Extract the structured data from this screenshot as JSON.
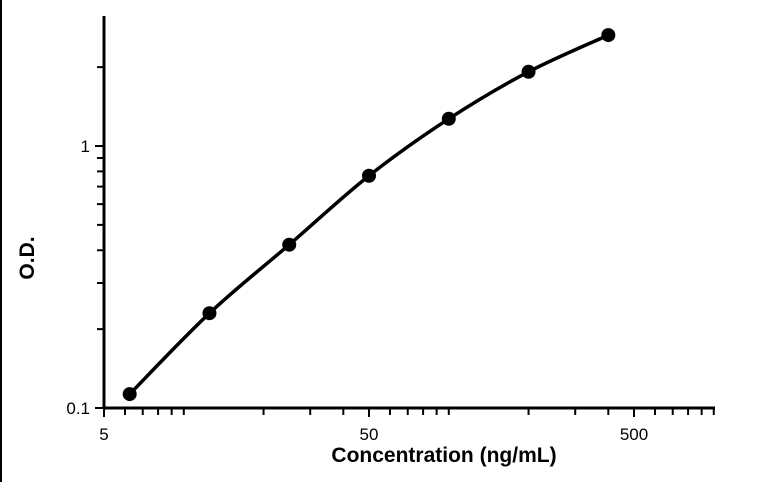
{
  "chart_data": {
    "type": "line",
    "title": "",
    "xlabel": "Concentration (ng/mL)",
    "ylabel": "O.D.",
    "x_scale": "log",
    "y_scale": "log",
    "xlim": [
      5,
      1000
    ],
    "ylim": [
      0.1,
      2.8
    ],
    "x_tick_labels": [
      {
        "value": 5,
        "label": "5"
      },
      {
        "value": 50,
        "label": "50"
      },
      {
        "value": 500,
        "label": "500"
      }
    ],
    "y_tick_labels": [
      {
        "value": 0.1,
        "label": "0.1"
      },
      {
        "value": 1,
        "label": "1"
      }
    ],
    "grid": false,
    "legend": "none",
    "series": [
      {
        "x": [
          6.25,
          12.5,
          25,
          50,
          100,
          200,
          400
        ],
        "y": [
          0.113,
          0.23,
          0.42,
          0.77,
          1.27,
          1.92,
          2.65
        ],
        "color": "#000000",
        "marker": "circle"
      }
    ]
  }
}
